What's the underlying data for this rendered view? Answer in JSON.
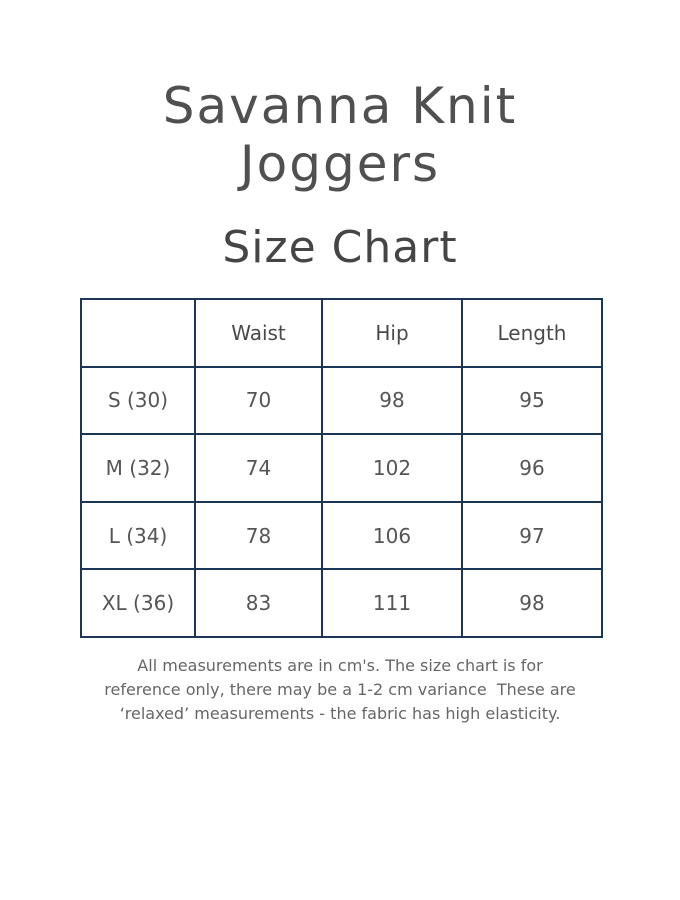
{
  "title": {
    "line1": "Savanna Knit",
    "line2": "Joggers",
    "subtitle": "Size Chart"
  },
  "table": {
    "headers": [
      "",
      "Waist",
      "Hip",
      "Length"
    ],
    "rows": [
      [
        "S (30)",
        "70",
        "98",
        "95"
      ],
      [
        "M (32)",
        "74",
        "102",
        "96"
      ],
      [
        "L (34)",
        "78",
        "106",
        "97"
      ],
      [
        "XL (36)",
        "83",
        "111",
        "98"
      ]
    ]
  },
  "note": {
    "lines": [
      "All measurements are in cm's. The size chart is for",
      "reference only, there may be a 1-2 cm variance  These are",
      "‘relaxed’ measurements - the fabric has high elasticity."
    ]
  },
  "colors": {
    "border": "#1c3656",
    "text": "#555555"
  }
}
